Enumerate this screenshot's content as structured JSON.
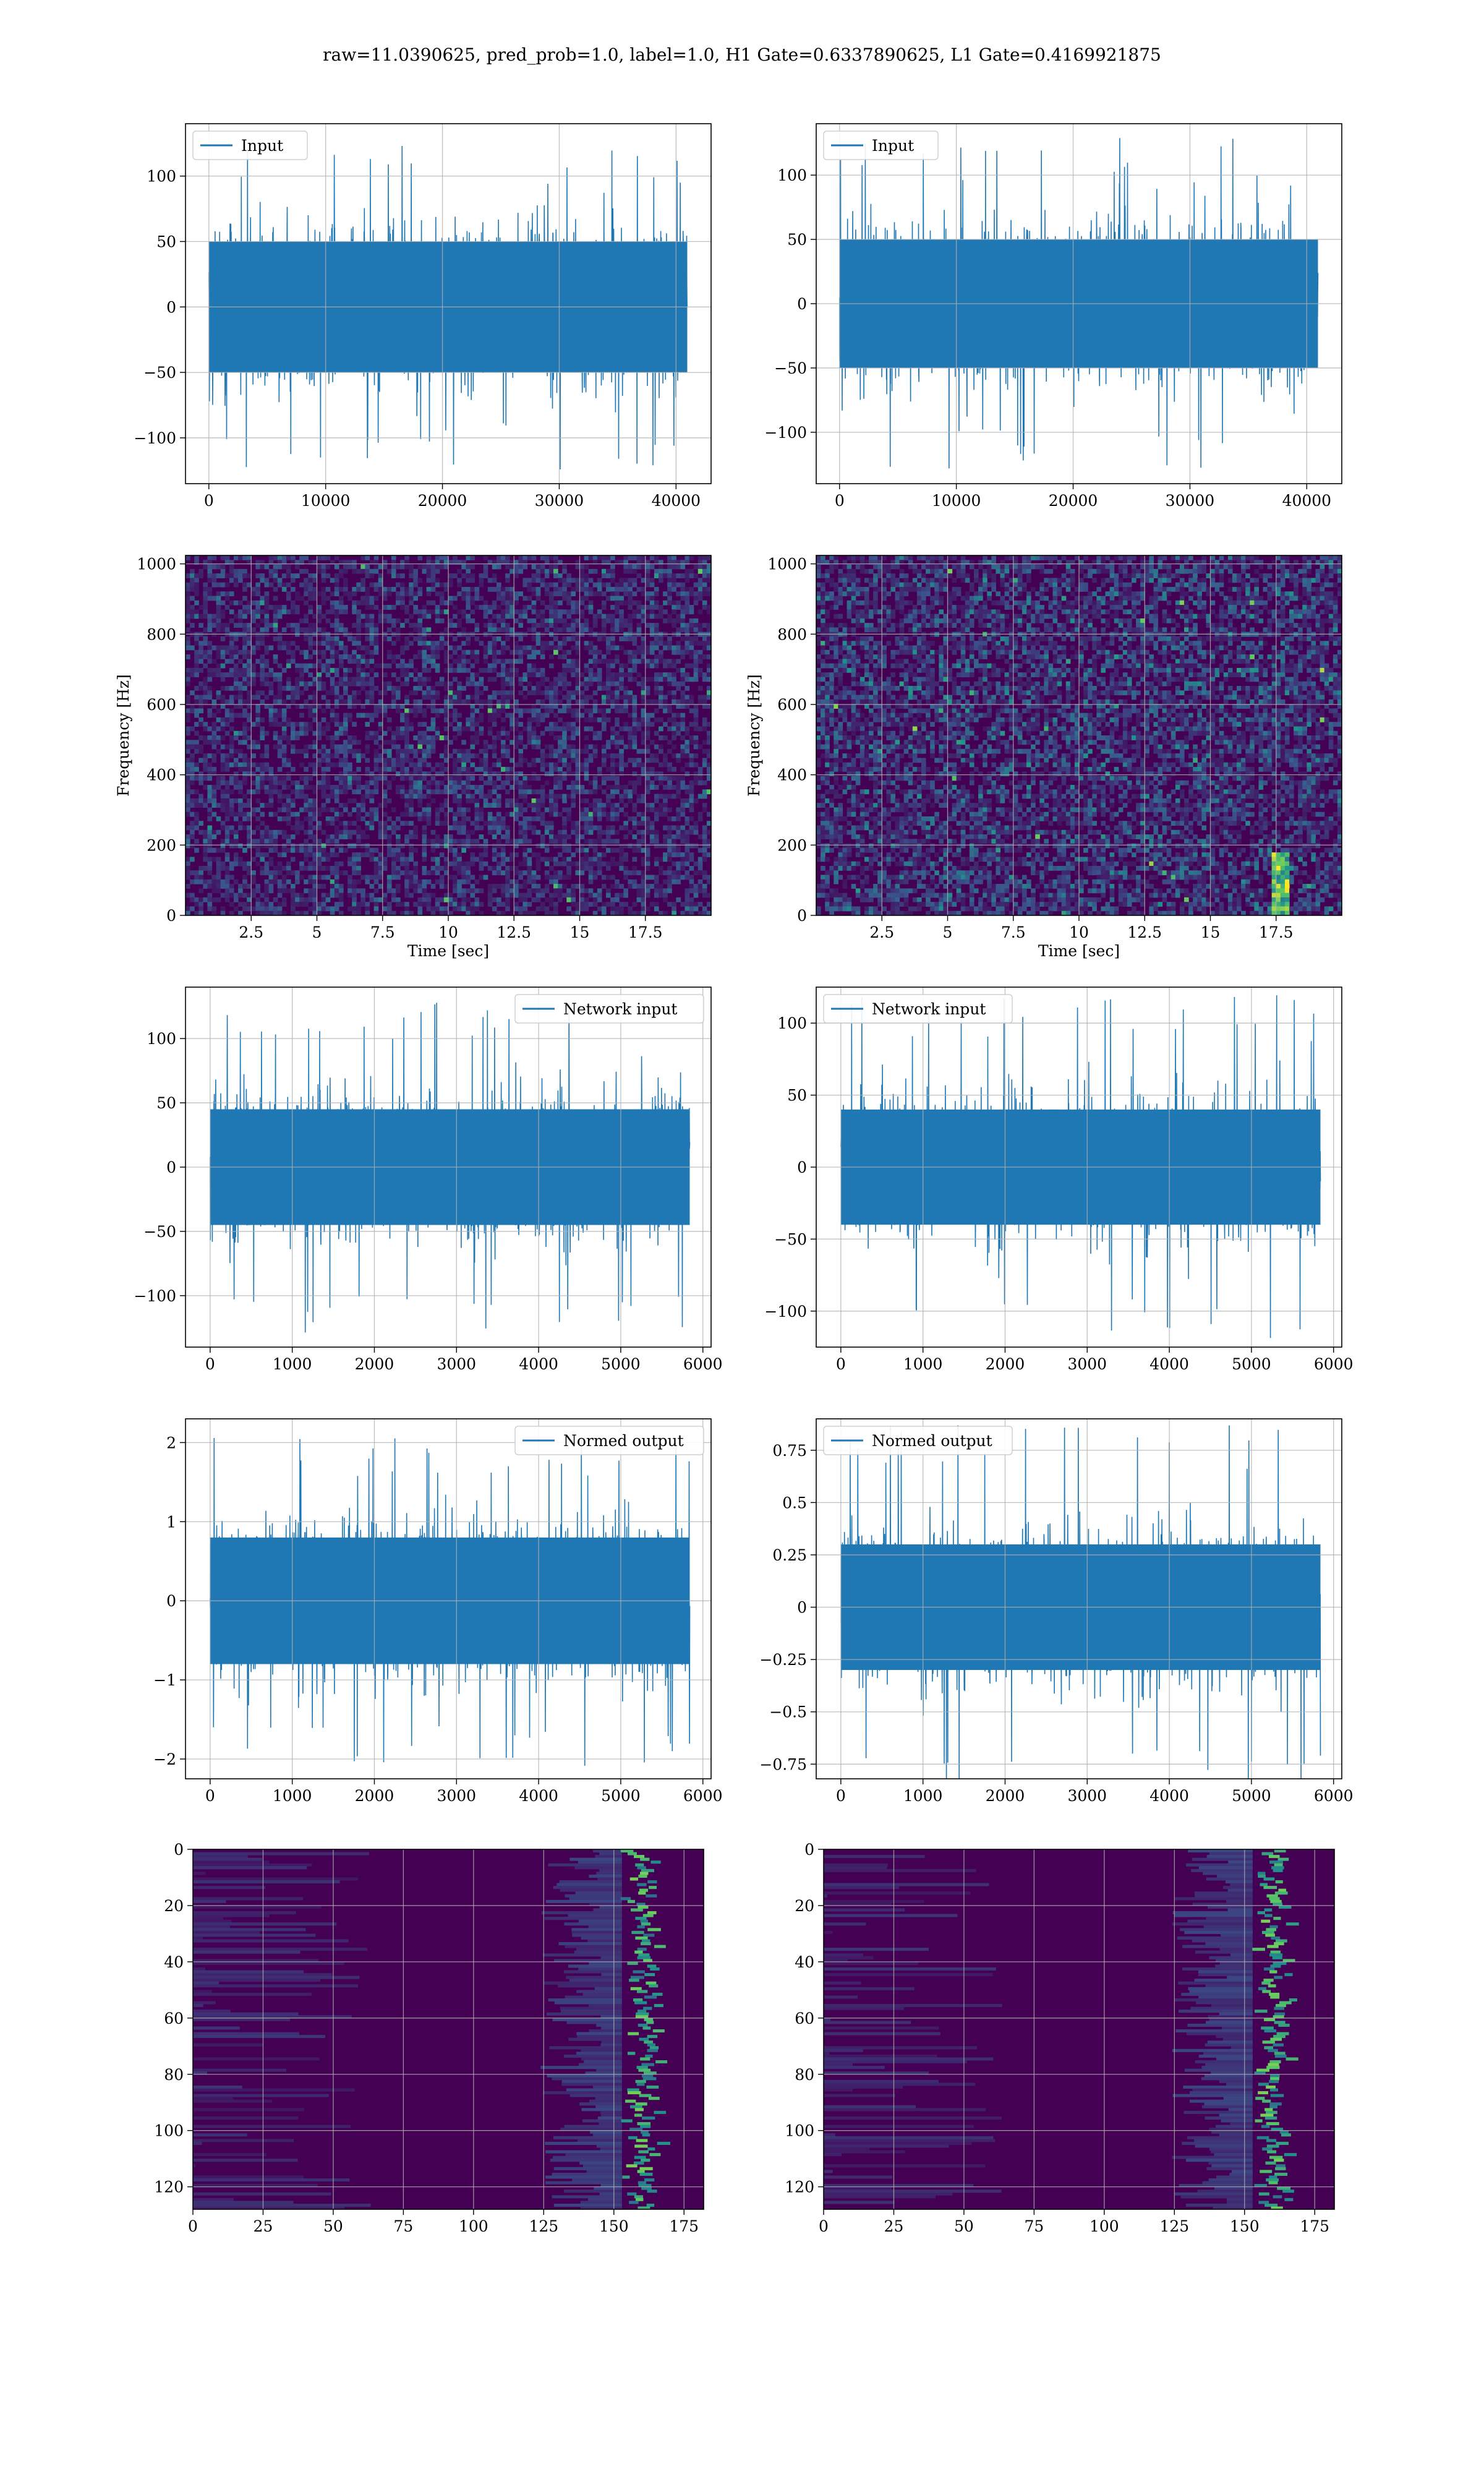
{
  "figure": {
    "suptitle": "raw=11.0390625, pred_prob=1.0, label=1.0, H1 Gate=0.6337890625, L1 Gate=0.4169921875"
  },
  "colors": {
    "line": "#1f77b4",
    "viridis_low": "#440154",
    "viridis_mid": "#21918c",
    "viridis_high": "#fde725",
    "grid": "#b0b0b0"
  },
  "chart_data": [
    {
      "id": "input-h1",
      "type": "line",
      "legend": "Input",
      "legend_loc": "upper left",
      "xlim": [
        -2000,
        43000
      ],
      "ylim": [
        -135,
        140
      ],
      "x_ticks": [
        0,
        10000,
        20000,
        30000,
        40000
      ],
      "y_ticks": [
        -100,
        -50,
        0,
        50,
        100
      ],
      "n_samples": 40960,
      "envelope": 50,
      "peak": 125,
      "grid": true
    },
    {
      "id": "input-l1",
      "type": "line",
      "legend": "Input",
      "legend_loc": "upper left",
      "xlim": [
        -2000,
        43000
      ],
      "ylim": [
        -140,
        140
      ],
      "x_ticks": [
        0,
        10000,
        20000,
        30000,
        40000
      ],
      "y_ticks": [
        -100,
        -50,
        0,
        50,
        100
      ],
      "n_samples": 40960,
      "envelope": 50,
      "peak": 130,
      "grid": true
    },
    {
      "id": "spec-h1",
      "type": "heatmap",
      "xlabel": "Time [sec]",
      "ylabel": "Frequency [Hz]",
      "xlim": [
        0,
        20
      ],
      "ylim": [
        0,
        1024
      ],
      "x_ticks": [
        2.5,
        5.0,
        7.5,
        10.0,
        12.5,
        15.0,
        17.5
      ],
      "y_ticks": [
        0,
        200,
        400,
        600,
        800,
        1000
      ],
      "intensity": "low",
      "grid": true
    },
    {
      "id": "spec-l1",
      "type": "heatmap",
      "xlabel": "Time [sec]",
      "ylabel": "Frequency [Hz]",
      "xlim": [
        0,
        20
      ],
      "ylim": [
        0,
        1024
      ],
      "x_ticks": [
        2.5,
        5.0,
        7.5,
        10.0,
        12.5,
        15.0,
        17.5
      ],
      "y_ticks": [
        0,
        200,
        400,
        600,
        800,
        1000
      ],
      "intensity": "medium",
      "hotspot_time": 17.7,
      "grid": true
    },
    {
      "id": "netin-h1",
      "type": "line",
      "legend": "Network input",
      "legend_loc": "upper right",
      "xlim": [
        -300,
        6100
      ],
      "ylim": [
        -140,
        140
      ],
      "x_ticks": [
        0,
        1000,
        2000,
        3000,
        4000,
        5000,
        6000
      ],
      "y_ticks": [
        -100,
        -50,
        0,
        50,
        100
      ],
      "n_samples": 5840,
      "envelope": 45,
      "peak": 130,
      "grid": true
    },
    {
      "id": "netin-l1",
      "type": "line",
      "legend": "Network input",
      "legend_loc": "upper left",
      "xlim": [
        -300,
        6100
      ],
      "ylim": [
        -125,
        125
      ],
      "x_ticks": [
        0,
        1000,
        2000,
        3000,
        4000,
        5000,
        6000
      ],
      "y_ticks": [
        -100,
        -50,
        0,
        50,
        100
      ],
      "n_samples": 5840,
      "envelope": 40,
      "peak": 120,
      "grid": true
    },
    {
      "id": "normed-h1",
      "type": "line",
      "legend": "Normed output",
      "legend_loc": "upper right",
      "xlim": [
        -300,
        6100
      ],
      "ylim": [
        -2.25,
        2.3
      ],
      "x_ticks": [
        0,
        1000,
        2000,
        3000,
        4000,
        5000,
        6000
      ],
      "y_ticks": [
        -2,
        -1,
        0,
        1,
        2
      ],
      "n_samples": 5840,
      "envelope": 0.8,
      "peak": 2.1,
      "grid": true
    },
    {
      "id": "normed-l1",
      "type": "line",
      "legend": "Normed output",
      "legend_loc": "upper left",
      "xlim": [
        -300,
        6100
      ],
      "ylim": [
        -0.82,
        0.9
      ],
      "x_ticks": [
        0,
        1000,
        2000,
        3000,
        4000,
        5000,
        6000
      ],
      "y_ticks": [
        -0.75,
        -0.5,
        -0.25,
        0.0,
        0.25,
        0.5,
        0.75
      ],
      "n_samples": 5840,
      "envelope": 0.3,
      "peak": 0.88,
      "grid": true
    },
    {
      "id": "feat-h1",
      "type": "heatmap",
      "xlim": [
        0,
        182
      ],
      "ylim": [
        128,
        0
      ],
      "x_ticks": [
        0,
        25,
        50,
        75,
        100,
        125,
        150,
        175
      ],
      "y_ticks": [
        0,
        20,
        40,
        60,
        80,
        100,
        120
      ],
      "band_column": 160,
      "grid": true
    },
    {
      "id": "feat-l1",
      "type": "heatmap",
      "xlim": [
        0,
        182
      ],
      "ylim": [
        128,
        0
      ],
      "x_ticks": [
        0,
        25,
        50,
        75,
        100,
        125,
        150,
        175
      ],
      "y_ticks": [
        0,
        20,
        40,
        60,
        80,
        100,
        120
      ],
      "band_column": 160,
      "grid": true
    }
  ]
}
